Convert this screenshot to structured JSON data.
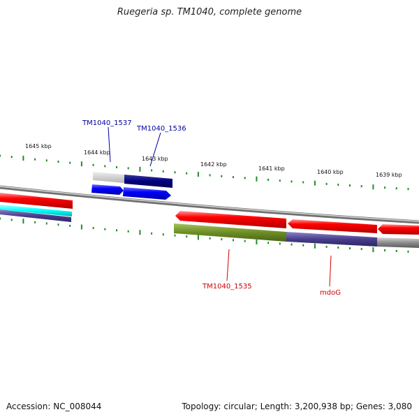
{
  "title": "Ruegeria sp. TM1040, complete genome",
  "footer": {
    "accession": "Accession: NC_008044",
    "summary": "Topology: circular; Length: 3,200,938 bp; Genes: 3,080"
  },
  "scale_labels": [
    "1645 kbp",
    "1644 kbp",
    "1643 kbp",
    "1642 kbp",
    "1641 kbp",
    "1640 kbp",
    "1639 kbp"
  ],
  "gene_labels": {
    "tm1537": "TM1040_1537",
    "tm1536": "TM1040_1536",
    "tm1535": "TM1040_1535",
    "mdog": "mdoG"
  },
  "colors": {
    "forward_cds": "#0000ff",
    "forward_dark": "#000080",
    "reverse_cds": "#ff0000",
    "olive": "#6b8e23",
    "slate": "#483d8b",
    "cyan": "#00ffff",
    "backbone": "#888888",
    "ticks": "#228b22",
    "label_blue": "#0000a0",
    "label_red": "#cc0000"
  }
}
